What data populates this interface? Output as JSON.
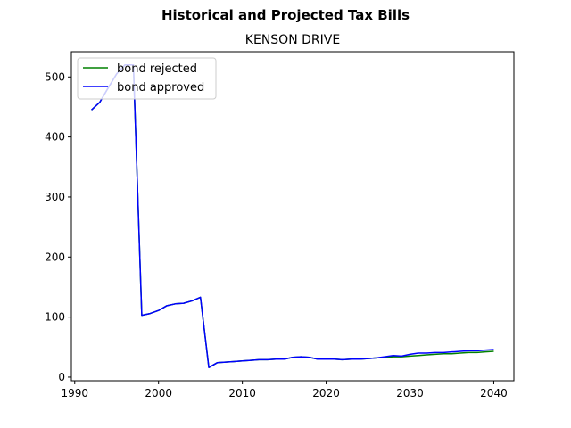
{
  "chart_data": {
    "type": "line",
    "suptitle": "Historical and Projected Tax Bills",
    "title": "KENSON DRIVE",
    "xlabel": "",
    "ylabel": "",
    "xlim": [
      1989.6,
      2042.4
    ],
    "ylim": [
      -6,
      542
    ],
    "x_ticks": [
      1990,
      2000,
      2010,
      2020,
      2030,
      2040
    ],
    "y_ticks": [
      0,
      100,
      200,
      300,
      400,
      500
    ],
    "grid": false,
    "legend": "upper-left",
    "x": [
      1992,
      1993,
      1994,
      1995,
      1996,
      1997,
      1998,
      1999,
      2000,
      2001,
      2002,
      2003,
      2004,
      2005,
      2006,
      2007,
      2008,
      2009,
      2010,
      2011,
      2012,
      2013,
      2014,
      2015,
      2016,
      2017,
      2018,
      2019,
      2020,
      2021,
      2022,
      2023,
      2024,
      2025,
      2026,
      2027,
      2028,
      2029,
      2030,
      2031,
      2032,
      2033,
      2034,
      2035,
      2036,
      2037,
      2038,
      2039,
      2040
    ],
    "series": [
      {
        "name": "bond rejected",
        "color": "#008000",
        "values": [
          445,
          458,
          482,
          505,
          520,
          520,
          103,
          106,
          111,
          119,
          122,
          123,
          127,
          133,
          16,
          24,
          25,
          26,
          27,
          28,
          29,
          29,
          30,
          30,
          33,
          34,
          33,
          30,
          30,
          30,
          29,
          30,
          30,
          31,
          32,
          33,
          34,
          34,
          35,
          36,
          37,
          38,
          39,
          39,
          40,
          41,
          41,
          42,
          43
        ]
      },
      {
        "name": "bond approved",
        "color": "#0000ff",
        "values": [
          445,
          458,
          482,
          505,
          520,
          520,
          103,
          106,
          111,
          119,
          122,
          123,
          127,
          133,
          16,
          24,
          25,
          26,
          27,
          28,
          29,
          29,
          30,
          30,
          33,
          34,
          33,
          30,
          30,
          30,
          29,
          30,
          30,
          31,
          32,
          34,
          36,
          35,
          38,
          40,
          40,
          41,
          41,
          42,
          43,
          44,
          44,
          45,
          46
        ]
      }
    ]
  }
}
